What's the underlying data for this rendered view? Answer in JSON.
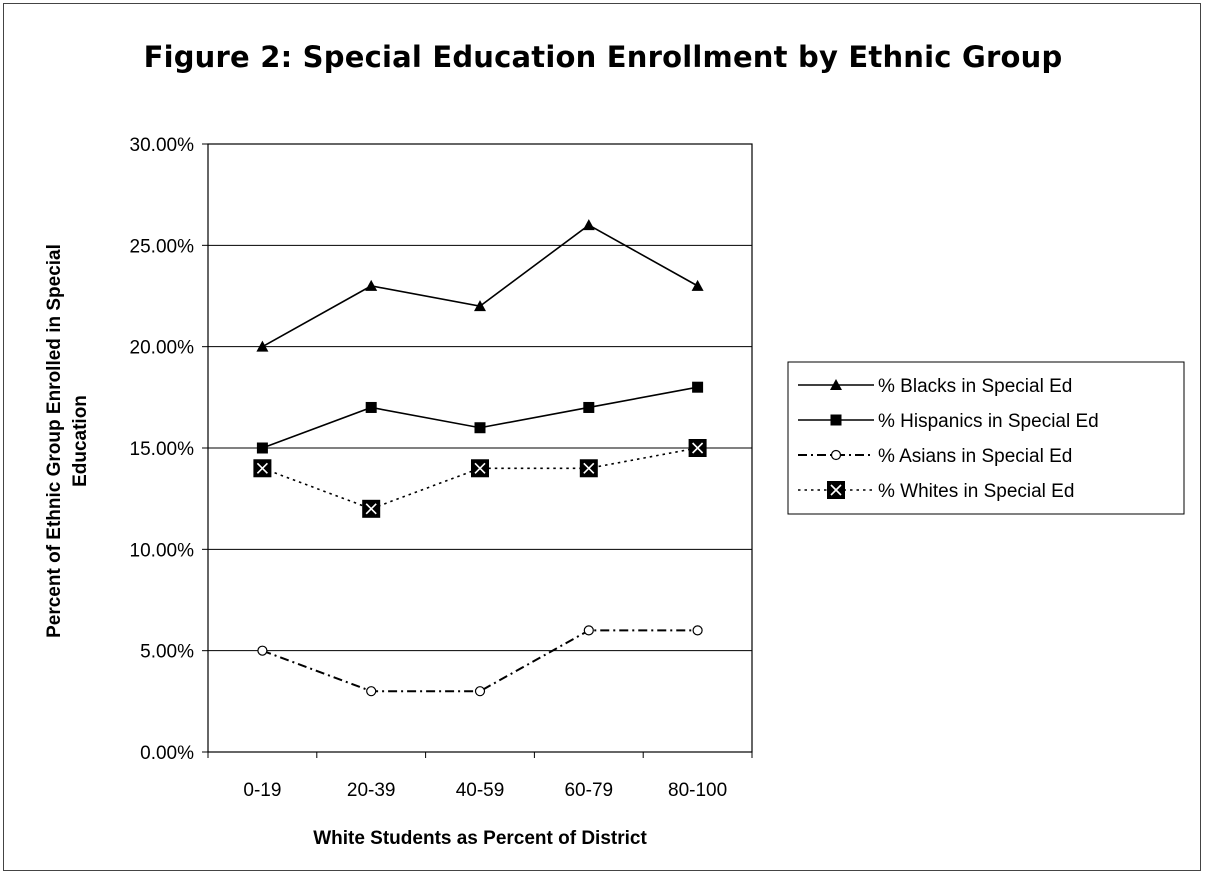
{
  "chart_data": {
    "type": "line",
    "title": "Figure 2: Special Education Enrollment by Ethnic Group",
    "xlabel": "White Students as Percent of District",
    "ylabel": [
      "Percent of Ethnic Group Enrolled in Special",
      "Education"
    ],
    "categories": [
      "0-19",
      "20-39",
      "40-59",
      "60-79",
      "80-100"
    ],
    "ylim": [
      0,
      0.3
    ],
    "yticks": [
      "0.00%",
      "5.00%",
      "10.00%",
      "15.00%",
      "20.00%",
      "25.00%",
      "30.00%"
    ],
    "grid": true,
    "legend_position": "right",
    "series": [
      {
        "name": "% Blacks in Special Ed",
        "values": [
          0.2,
          0.23,
          0.22,
          0.26,
          0.23
        ],
        "marker": "triangle",
        "line": "solid"
      },
      {
        "name": "% Hispanics in Special Ed",
        "values": [
          0.15,
          0.17,
          0.16,
          0.17,
          0.18
        ],
        "marker": "square",
        "line": "solid"
      },
      {
        "name": "% Asians in Special Ed",
        "values": [
          0.05,
          0.03,
          0.03,
          0.06,
          0.06
        ],
        "marker": "circle",
        "line": "dashdot"
      },
      {
        "name": "% Whites in Special Ed",
        "values": [
          0.14,
          0.12,
          0.14,
          0.14,
          0.15
        ],
        "marker": "boxed-x",
        "line": "dotted"
      }
    ]
  }
}
